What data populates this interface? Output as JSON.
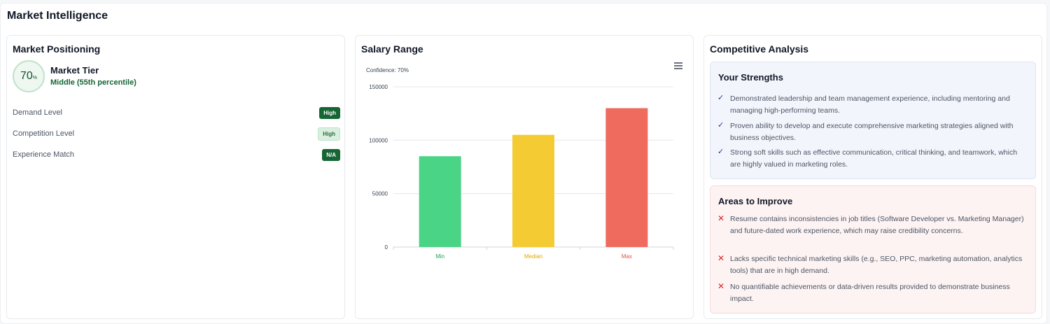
{
  "page": {
    "title": "Market Intelligence"
  },
  "positioning": {
    "title": "Market Positioning",
    "score": "70",
    "score_unit": "%",
    "tier_label": "Market Tier",
    "tier_value": "Middle (55th percentile)",
    "metrics": [
      {
        "label": "Demand Level",
        "badge": "High",
        "style": "dark"
      },
      {
        "label": "Competition Level",
        "badge": "High",
        "style": "light"
      },
      {
        "label": "Experience Match",
        "badge": "N/A",
        "style": "dark"
      }
    ]
  },
  "salary": {
    "title": "Salary Range",
    "subtitle": "Confidence: 70%"
  },
  "chart_data": {
    "type": "bar",
    "title": "",
    "subtitle": "Confidence: 70%",
    "categories": [
      "Min",
      "Median",
      "Max"
    ],
    "values": [
      85000,
      105000,
      130000
    ],
    "colors": [
      "#4ad486",
      "#f4cb33",
      "#ee6b5e"
    ],
    "ylim": [
      0,
      150000
    ],
    "yticks": [
      "0",
      "50000",
      "100000",
      "150000"
    ],
    "ytick_values": [
      0,
      50000,
      100000,
      150000
    ],
    "grid": true,
    "legend": "none"
  },
  "competitive": {
    "title": "Competitive Analysis",
    "strengths_title": "Your Strengths",
    "strengths": [
      "Demonstrated leadership and team management experience, including mentoring and managing high-performing teams.",
      "Proven ability to develop and execute comprehensive marketing strategies aligned with business objectives.",
      "Strong soft skills such as effective communication, critical thinking, and teamwork, which are highly valued in marketing roles."
    ],
    "improve_title": "Areas to Improve",
    "improvements": [
      "Resume contains inconsistencies in job titles (Software Developer vs. Marketing Manager) and future-dated work experience, which may raise credibility concerns.",
      "Lacks specific technical marketing skills (e.g., SEO, PPC, marketing automation, analytics tools) that are in high demand.",
      "No quantifiable achievements or data-driven results provided to demonstrate business impact."
    ],
    "check_icon": "check-icon",
    "cross_icon": "cross-icon"
  }
}
